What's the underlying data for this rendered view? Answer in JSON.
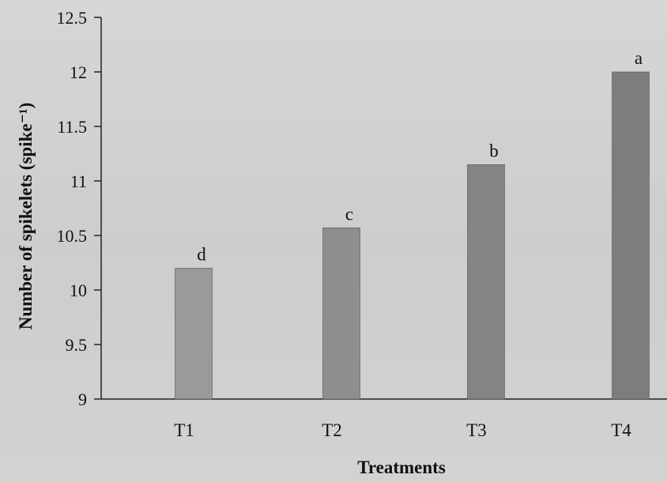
{
  "chart_data": {
    "type": "bar",
    "categories": [
      "T1",
      "T2",
      "T3",
      "T4"
    ],
    "values": [
      10.2,
      10.57,
      11.15,
      12.0
    ],
    "data_labels": [
      "d",
      "c",
      "b",
      "a"
    ],
    "xlabel": "Treatments",
    "ylabel": "Number of spikelets (spike⁻¹)",
    "ylim": [
      9,
      12.5
    ],
    "yticks": [
      9,
      9.5,
      10,
      10.5,
      11,
      11.5,
      12,
      12.5
    ],
    "ytick_labels": [
      "9",
      "9.5",
      "10",
      "10.5",
      "11",
      "11.5",
      "12",
      "12.5"
    ],
    "grid": false,
    "legend": "none",
    "bar_colors": [
      "#9a9a9a",
      "#8e8e8e",
      "#848484",
      "#7d7d7d"
    ]
  }
}
